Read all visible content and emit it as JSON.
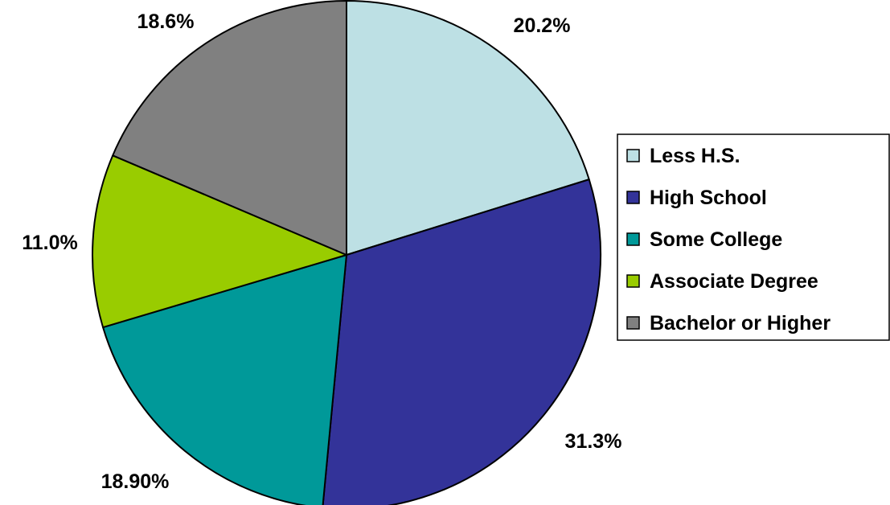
{
  "chart_data": {
    "type": "pie",
    "title": "",
    "start_angle_deg": 0,
    "direction": "clockwise",
    "legend_position": "right",
    "categories": [
      "Less H.S.",
      "High School",
      "Some College",
      "Associate Degree",
      "Bachelor or Higher"
    ],
    "values": [
      20.2,
      31.3,
      18.9,
      11.0,
      18.6
    ],
    "data_labels": [
      "20.2%",
      "31.3%",
      "18.90%",
      "11.0%",
      "18.6%"
    ],
    "colors": [
      "#bde0e4",
      "#333399",
      "#009999",
      "#99cc00",
      "#808080"
    ]
  }
}
